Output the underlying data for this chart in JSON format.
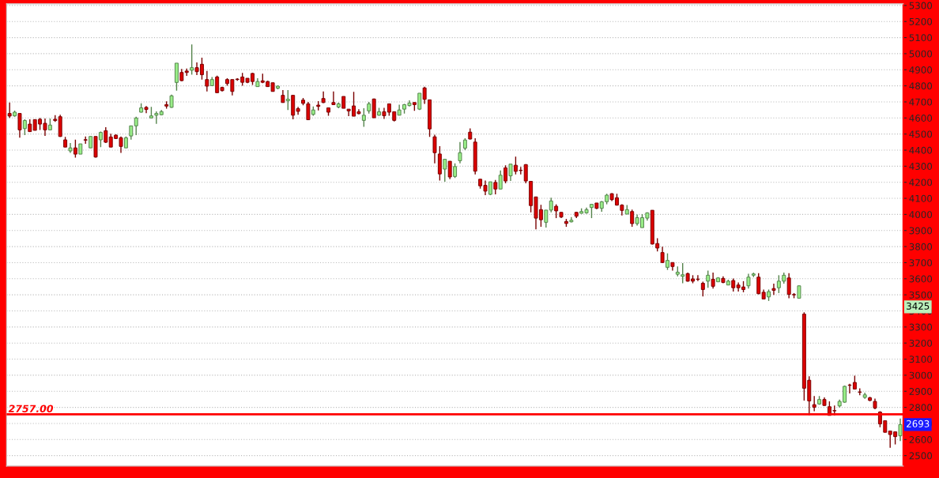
{
  "chart_data": {
    "type": "candlestick",
    "categories": [
      null,
      null,
      null,
      null,
      null,
      null,
      null,
      null,
      null,
      null,
      null,
      null,
      null,
      null,
      null,
      null,
      null,
      null,
      null,
      null,
      null,
      null,
      null,
      null,
      null,
      null,
      null,
      null,
      null,
      null,
      null,
      null,
      null,
      null,
      null,
      null,
      null,
      null,
      null,
      null,
      null,
      null,
      null,
      null,
      null,
      null,
      null,
      null,
      null,
      null,
      null,
      null,
      null,
      null,
      null,
      null,
      null,
      null,
      null,
      null,
      null,
      null,
      null,
      null,
      null,
      null,
      null,
      null,
      null,
      null,
      null,
      null,
      null,
      null,
      null,
      null,
      null,
      null,
      null,
      null,
      null,
      null,
      null,
      null,
      null,
      null,
      null,
      null,
      null,
      null,
      null,
      null,
      null,
      null,
      null,
      null,
      null,
      null,
      null,
      null,
      null,
      null,
      null,
      null,
      null,
      null,
      null,
      null,
      null,
      null,
      null,
      null,
      null,
      null,
      null,
      null,
      null,
      null,
      null,
      null,
      null,
      null,
      null,
      null,
      null,
      null,
      null,
      null,
      null,
      null,
      null,
      null,
      null,
      null,
      null,
      null,
      null,
      null,
      null,
      null,
      null,
      null,
      null,
      null,
      null,
      null,
      null,
      null,
      null,
      null,
      null,
      null,
      null,
      null,
      null,
      null,
      null,
      null,
      null,
      null,
      null,
      null,
      null,
      null,
      null,
      null,
      null,
      null,
      null,
      null,
      null,
      null,
      null,
      null,
      null,
      null,
      null
    ],
    "ohlc": [
      [
        4628,
        4696,
        4600,
        4612
      ],
      [
        4613,
        4646,
        4608,
        4636
      ],
      [
        4628,
        4628,
        4477,
        4526
      ],
      [
        4534,
        4592,
        4493,
        4584
      ],
      [
        4562,
        4592,
        4515,
        4515
      ],
      [
        4590,
        4590,
        4523,
        4523
      ],
      [
        4592,
        4600,
        4526,
        4562
      ],
      [
        4567,
        4597,
        4488,
        4526
      ],
      [
        4526,
        4597,
        4526,
        4556
      ],
      [
        4592,
        4617,
        4576,
        4584
      ],
      [
        4608,
        4620,
        4482,
        4485
      ],
      [
        4464,
        4482,
        4419,
        4419
      ],
      [
        4395,
        4444,
        4383,
        4414
      ],
      [
        4414,
        4465,
        4353,
        4375
      ],
      [
        4375,
        4439,
        4375,
        4439
      ],
      [
        4465,
        4485,
        4439,
        4462
      ],
      [
        4414,
        4485,
        4414,
        4485
      ],
      [
        4485,
        4485,
        4353,
        4357
      ],
      [
        4464,
        4515,
        4419,
        4510
      ],
      [
        4521,
        4543,
        4444,
        4449
      ],
      [
        4482,
        4502,
        4419,
        4419
      ],
      [
        4493,
        4498,
        4469,
        4472
      ],
      [
        4477,
        4485,
        4383,
        4423
      ],
      [
        4414,
        4485,
        4414,
        4477
      ],
      [
        4488,
        4551,
        4465,
        4551
      ],
      [
        4551,
        4608,
        4493,
        4600
      ],
      [
        4636,
        4691,
        4633,
        4663
      ],
      [
        4666,
        4674,
        4630,
        4653
      ],
      [
        4600,
        4669,
        4600,
        4613
      ],
      [
        4617,
        4641,
        4564,
        4628
      ],
      [
        4620,
        4650,
        4617,
        4640
      ],
      [
        4683,
        4704,
        4658,
        4674
      ],
      [
        4666,
        4745,
        4663,
        4738
      ],
      [
        4821,
        4941,
        4770,
        4941
      ],
      [
        4883,
        4905,
        4829,
        4832
      ],
      [
        4892,
        4908,
        4862,
        4883
      ],
      [
        4897,
        5057,
        4870,
        4913
      ],
      [
        4913,
        4946,
        4867,
        4888
      ],
      [
        4934,
        4975,
        4839,
        4869
      ],
      [
        4839,
        4893,
        4765,
        4798
      ],
      [
        4801,
        4855,
        4798,
        4839
      ],
      [
        4855,
        4863,
        4757,
        4757
      ],
      [
        4790,
        4795,
        4765,
        4770
      ],
      [
        4839,
        4847,
        4801,
        4814
      ],
      [
        4839,
        4839,
        4741,
        4765
      ],
      [
        4842,
        4847,
        4831,
        4839
      ],
      [
        4855,
        4880,
        4801,
        4822
      ],
      [
        4847,
        4847,
        4817,
        4822
      ],
      [
        4877,
        4880,
        4806,
        4827
      ],
      [
        4795,
        4847,
        4795,
        4827
      ],
      [
        4831,
        4875,
        4817,
        4822
      ],
      [
        4827,
        4831,
        4795,
        4795
      ],
      [
        4819,
        4819,
        4765,
        4765
      ],
      [
        4785,
        4803,
        4778,
        4798
      ],
      [
        4741,
        4773,
        4696,
        4696
      ],
      [
        4707,
        4773,
        4650,
        4717
      ],
      [
        4741,
        4741,
        4592,
        4617
      ],
      [
        4658,
        4669,
        4620,
        4641
      ],
      [
        4711,
        4724,
        4679,
        4691
      ],
      [
        4688,
        4700,
        4589,
        4589
      ],
      [
        4622,
        4672,
        4614,
        4650
      ],
      [
        4680,
        4705,
        4647,
        4672
      ],
      [
        4721,
        4765,
        4693,
        4696
      ],
      [
        4663,
        4663,
        4614,
        4636
      ],
      [
        4696,
        4765,
        4680,
        4683
      ],
      [
        4668,
        4696,
        4660,
        4688
      ],
      [
        4734,
        4734,
        4660,
        4660
      ],
      [
        4655,
        4655,
        4611,
        4644
      ],
      [
        4675,
        4762,
        4611,
        4611
      ],
      [
        4639,
        4655,
        4622,
        4627
      ],
      [
        4585,
        4660,
        4545,
        4617
      ],
      [
        4644,
        4700,
        4627,
        4688
      ],
      [
        4718,
        4721,
        4601,
        4601
      ],
      [
        4617,
        4663,
        4614,
        4639
      ],
      [
        4639,
        4663,
        4594,
        4614
      ],
      [
        4688,
        4688,
        4614,
        4636
      ],
      [
        4639,
        4639,
        4578,
        4585
      ],
      [
        4617,
        4683,
        4617,
        4650
      ],
      [
        4655,
        4688,
        4627,
        4683
      ],
      [
        4677,
        4710,
        4672,
        4693
      ],
      [
        4696,
        4696,
        4644,
        4683
      ],
      [
        4655,
        4754,
        4650,
        4754
      ],
      [
        4787,
        4795,
        4688,
        4716
      ],
      [
        4713,
        4713,
        4483,
        4532
      ],
      [
        4483,
        4496,
        4318,
        4384
      ],
      [
        4376,
        4425,
        4211,
        4252
      ],
      [
        4282,
        4343,
        4203,
        4343
      ],
      [
        4331,
        4331,
        4219,
        4233
      ],
      [
        4236,
        4318,
        4227,
        4298
      ],
      [
        4334,
        4450,
        4318,
        4384
      ],
      [
        4412,
        4474,
        4400,
        4463
      ],
      [
        4512,
        4535,
        4466,
        4469
      ],
      [
        4450,
        4474,
        4249,
        4269
      ],
      [
        4219,
        4219,
        4161,
        4178
      ],
      [
        4181,
        4211,
        4120,
        4145
      ],
      [
        4125,
        4203,
        4120,
        4203
      ],
      [
        4199,
        4214,
        4125,
        4158
      ],
      [
        4158,
        4273,
        4158,
        4244
      ],
      [
        4290,
        4306,
        4194,
        4208
      ],
      [
        4240,
        4313,
        4208,
        4313
      ],
      [
        4306,
        4359,
        4249,
        4268
      ],
      [
        4275,
        4296,
        4249,
        4273
      ],
      [
        4310,
        4313,
        4194,
        4208
      ],
      [
        4206,
        4206,
        4013,
        4055
      ],
      [
        4109,
        4109,
        3907,
        3977
      ],
      [
        4030,
        4060,
        3923,
        3967
      ],
      [
        3951,
        4027,
        3918,
        4027
      ],
      [
        4027,
        4104,
        4013,
        4084
      ],
      [
        4051,
        4063,
        3977,
        4022
      ],
      [
        4013,
        4013,
        3977,
        3984
      ],
      [
        3956,
        3972,
        3923,
        3944
      ],
      [
        3954,
        3984,
        3951,
        3964
      ],
      [
        4013,
        4017,
        3977,
        3989
      ],
      [
        4007,
        4038,
        4005,
        4018
      ],
      [
        4010,
        4043,
        4005,
        4030
      ],
      [
        4043,
        4063,
        3977,
        4063
      ],
      [
        4071,
        4071,
        4033,
        4038
      ],
      [
        4038,
        4083,
        4017,
        4079
      ],
      [
        4079,
        4129,
        4063,
        4120
      ],
      [
        4129,
        4132,
        4083,
        4092
      ],
      [
        4104,
        4129,
        4055,
        4058
      ],
      [
        4058,
        4063,
        3994,
        4025
      ],
      [
        4002,
        4058,
        4002,
        4030
      ],
      [
        4018,
        4030,
        3923,
        3943
      ],
      [
        3943,
        4000,
        3931,
        3980
      ],
      [
        3918,
        4002,
        3918,
        3980
      ],
      [
        3977,
        4013,
        3961,
        4010
      ],
      [
        4026,
        4026,
        3813,
        3816
      ],
      [
        3819,
        3852,
        3770,
        3791
      ],
      [
        3763,
        3799,
        3697,
        3701
      ],
      [
        3671,
        3758,
        3655,
        3714
      ],
      [
        3701,
        3701,
        3651,
        3676
      ],
      [
        3628,
        3676,
        3615,
        3641
      ],
      [
        3615,
        3697,
        3572,
        3625
      ],
      [
        3632,
        3638,
        3582,
        3585
      ],
      [
        3599,
        3622,
        3572,
        3585
      ],
      [
        3598,
        3622,
        3585,
        3596
      ],
      [
        3572,
        3582,
        3490,
        3533
      ],
      [
        3585,
        3651,
        3544,
        3622
      ],
      [
        3597,
        3638,
        3539,
        3553
      ],
      [
        3581,
        3610,
        3581,
        3605
      ],
      [
        3602,
        3615,
        3572,
        3577
      ],
      [
        3561,
        3594,
        3561,
        3585
      ],
      [
        3589,
        3602,
        3520,
        3544
      ],
      [
        3561,
        3577,
        3520,
        3544
      ],
      [
        3549,
        3585,
        3516,
        3533
      ],
      [
        3556,
        3631,
        3539,
        3610
      ],
      [
        3622,
        3638,
        3610,
        3630
      ],
      [
        3610,
        3635,
        3503,
        3507
      ],
      [
        3516,
        3533,
        3474,
        3474
      ],
      [
        3487,
        3533,
        3462,
        3520
      ],
      [
        3539,
        3569,
        3500,
        3528
      ],
      [
        3544,
        3622,
        3511,
        3585
      ],
      [
        3585,
        3638,
        3569,
        3622
      ],
      [
        3605,
        3635,
        3479,
        3503
      ],
      [
        3502,
        3511,
        3479,
        3500
      ],
      [
        3479,
        3556,
        3479,
        3556
      ],
      [
        3380,
        3391,
        2842,
        2919
      ],
      [
        2969,
        2993,
        2751,
        2840
      ],
      [
        2817,
        2870,
        2776,
        2801
      ],
      [
        2821,
        2870,
        2816,
        2849
      ],
      [
        2849,
        2862,
        2809,
        2812
      ],
      [
        2804,
        2837,
        2750,
        2750
      ],
      [
        2780,
        2812,
        2750,
        2778
      ],
      [
        2809,
        2849,
        2799,
        2837
      ],
      [
        2832,
        2936,
        2829,
        2931
      ],
      [
        2939,
        2947,
        2886,
        2937
      ],
      [
        2955,
        2997,
        2911,
        2914
      ],
      [
        2896,
        2919,
        2875,
        2894
      ],
      [
        2862,
        2891,
        2853,
        2878
      ],
      [
        2860,
        2865,
        2838,
        2843
      ],
      [
        2837,
        2854,
        2788,
        2796
      ],
      [
        2771,
        2776,
        2677,
        2697
      ],
      [
        2717,
        2720,
        2645,
        2645
      ],
      [
        2653,
        2653,
        2549,
        2631
      ],
      [
        2648,
        2651,
        2569,
        2618
      ],
      [
        2623,
        2730,
        2590,
        2693
      ]
    ],
    "colors": [
      "#dd0000",
      "#99ee88",
      "#dd0000",
      "#99ee88",
      "#dd0000",
      "#dd0000",
      "#dd0000",
      "#dd0000",
      "#99ee88",
      "#dd0000",
      "#dd0000",
      "#dd0000",
      "#99ee88",
      "#dd0000",
      "#99ee88",
      "#dd0000",
      "#99ee88",
      "#dd0000",
      "#99ee88",
      "#dd0000",
      "#dd0000",
      "#dd0000",
      "#dd0000",
      "#99ee88",
      "#99ee88",
      "#99ee88",
      "#99ee88",
      "#dd0000",
      "#99ee88",
      "#99ee88",
      "#99ee88",
      "#dd0000",
      "#99ee88",
      "#99ee88",
      "#dd0000",
      "#dd0000",
      "#99ee88",
      "#dd0000",
      "#dd0000",
      "#dd0000",
      "#99ee88",
      "#dd0000",
      "#dd0000",
      "#dd0000",
      "#dd0000",
      "#dd0000",
      "#dd0000",
      "#dd0000",
      "#dd0000",
      "#99ee88",
      "#dd0000",
      "#dd0000",
      "#dd0000",
      "#99ee88",
      "#dd0000",
      "#99ee88",
      "#dd0000",
      "#dd0000",
      "#dd0000",
      "#dd0000",
      "#99ee88",
      "#dd0000",
      "#dd0000",
      "#dd0000",
      "#dd0000",
      "#99ee88",
      "#dd0000",
      "#dd0000",
      "#dd0000",
      "#dd0000",
      "#99ee88",
      "#99ee88",
      "#dd0000",
      "#99ee88",
      "#dd0000",
      "#dd0000",
      "#dd0000",
      "#99ee88",
      "#99ee88",
      "#99ee88",
      "#dd0000",
      "#99ee88",
      "#dd0000",
      "#dd0000",
      "#dd0000",
      "#dd0000",
      "#99ee88",
      "#dd0000",
      "#99ee88",
      "#99ee88",
      "#99ee88",
      "#dd0000",
      "#dd0000",
      "#dd0000",
      "#dd0000",
      "#99ee88",
      "#dd0000",
      "#99ee88",
      "#dd0000",
      "#99ee88",
      "#dd0000",
      "#dd0000",
      "#dd0000",
      "#dd0000",
      "#dd0000",
      "#dd0000",
      "#99ee88",
      "#99ee88",
      "#dd0000",
      "#dd0000",
      "#dd0000",
      "#99ee88",
      "#dd0000",
      "#99ee88",
      "#99ee88",
      "#99ee88",
      "#dd0000",
      "#99ee88",
      "#99ee88",
      "#dd0000",
      "#dd0000",
      "#dd0000",
      "#99ee88",
      "#dd0000",
      "#99ee88",
      "#99ee88",
      "#99ee88",
      "#dd0000",
      "#dd0000",
      "#dd0000",
      "#99ee88",
      "#dd0000",
      "#99ee88",
      "#99ee88",
      "#dd0000",
      "#dd0000",
      "#dd0000",
      "#dd0000",
      "#99ee88",
      "#dd0000",
      "#99ee88",
      "#dd0000",
      "#99ee88",
      "#dd0000",
      "#dd0000",
      "#dd0000",
      "#99ee88",
      "#99ee88",
      "#dd0000",
      "#dd0000",
      "#99ee88",
      "#dd0000",
      "#99ee88",
      "#99ee88",
      "#dd0000",
      "#dd0000",
      "#99ee88",
      "#dd0000",
      "#dd0000",
      "#dd0000",
      "#99ee88",
      "#dd0000",
      "#dd0000",
      "#dd0000",
      "#99ee88",
      "#99ee88",
      "#dd0000",
      "#dd0000",
      "#dd0000",
      "#99ee88",
      "#dd0000",
      "#dd0000",
      "#dd0000",
      "#dd0000",
      "#dd0000",
      "#dd0000",
      "#99ee88"
    ],
    "ylim": [
      2435,
      5310
    ],
    "yticks": [
      2500,
      2600,
      2700,
      2800,
      2900,
      3000,
      3100,
      3200,
      3300,
      3400,
      3500,
      3600,
      3700,
      3800,
      3900,
      4000,
      4100,
      4200,
      4300,
      4400,
      4500,
      4600,
      4700,
      4800,
      4900,
      5000,
      5100,
      5200,
      5300
    ],
    "grid": "y",
    "ref_lines": [
      {
        "axis": "y",
        "value": 2757,
        "label": "2757.00",
        "color": "#ff0000",
        "line_style": "solid"
      }
    ],
    "annotations": [
      {
        "text": "3425",
        "y": 3425
      },
      {
        "text": "2693",
        "y": 2693
      }
    ]
  }
}
